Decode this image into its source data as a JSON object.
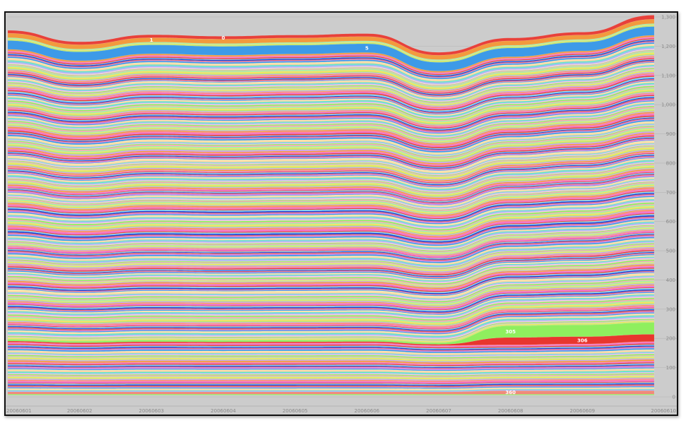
{
  "chart_data": {
    "type": "area",
    "stacked": true,
    "series_count": 361,
    "x": [
      "20060601",
      "20060602",
      "20060603",
      "20060604",
      "20060605",
      "20060606",
      "20060607",
      "20060608",
      "20060609",
      "20060610"
    ],
    "yticks": [
      "0",
      "100",
      "200",
      "300",
      "400",
      "500",
      "600",
      "700",
      "800",
      "900",
      "1,000",
      "1,100",
      "1,200",
      "1,300"
    ],
    "ylim": [
      0,
      1300
    ],
    "total": [
      1258,
      1219,
      1243,
      1238,
      1242,
      1247,
      1183,
      1232,
      1252,
      1310
    ],
    "layers": [
      {
        "label": "0",
        "values": [
          10,
          10,
          10,
          10,
          10,
          10,
          10,
          10,
          10,
          14
        ],
        "color": "#e8413a"
      },
      {
        "label": "1",
        "values": [
          15,
          15,
          15,
          15,
          15,
          15,
          15,
          15,
          15,
          15
        ],
        "color": "#f29a3e"
      },
      {
        "label": "5",
        "values": [
          30,
          30,
          30,
          30,
          30,
          30,
          30,
          30,
          30,
          30
        ],
        "color": "#3d9ae8"
      },
      {
        "label": "305",
        "values": [
          5,
          5,
          5,
          5,
          5,
          5,
          5,
          40,
          40,
          40
        ],
        "color": "#8fef5e"
      },
      {
        "label": "306",
        "values": [
          4,
          4,
          4,
          4,
          4,
          4,
          4,
          25,
          25,
          25
        ],
        "color": "#e8362e"
      },
      {
        "label": "360",
        "values": [
          8,
          8,
          8,
          8,
          8,
          8,
          8,
          12,
          12,
          12
        ],
        "color": "#f08a7a"
      }
    ],
    "grid": true,
    "palette": [
      "#e8413a",
      "#f29a3e",
      "#f7e15a",
      "#8fef5e",
      "#61e3c9",
      "#3d9ae8",
      "#1f3fd6",
      "#ee6bd0",
      "#c9a0f0",
      "#a6f0a0",
      "#f5c6e0",
      "#ffd4a0",
      "#d47de8",
      "#7fd3f5",
      "#ff7a9c",
      "#b9e86a",
      "#f5a6b4",
      "#9fb8f5",
      "#ffe9a8",
      "#e06060"
    ],
    "band_labels": [
      {
        "text": "0",
        "series": "0",
        "x_index": 3
      },
      {
        "text": "1",
        "series": "1",
        "x_index": 2
      },
      {
        "text": "5",
        "series": "5",
        "x_index": 5
      },
      {
        "text": "305",
        "series": "305",
        "x_index": 7
      },
      {
        "text": "306",
        "series": "306",
        "x_index": 8
      },
      {
        "text": "360",
        "series": "360",
        "x_index": 7
      }
    ]
  }
}
